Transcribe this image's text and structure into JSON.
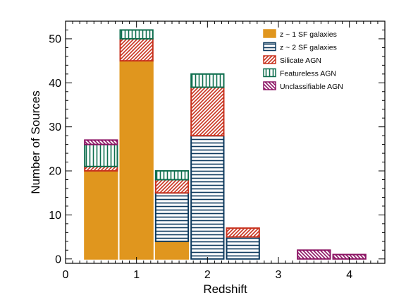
{
  "chart_data": {
    "type": "bar",
    "stacked": true,
    "xlabel": "Redshift",
    "ylabel": "Number of Sources",
    "xlim": [
      0,
      4.5
    ],
    "ylim": [
      -1,
      54
    ],
    "x_ticks": [
      0,
      1,
      2,
      3,
      4
    ],
    "y_ticks": [
      0,
      10,
      20,
      30,
      40,
      50
    ],
    "bin_width": 0.5,
    "bin_centers": [
      0.5,
      1.0,
      1.5,
      2.0,
      2.5,
      3.0,
      3.5,
      4.0
    ],
    "legend_position": "top-right",
    "series": [
      {
        "name": "z ~ 1 SF galaxies",
        "pattern": "solid",
        "color": "#E0961E",
        "values": [
          20,
          45,
          4,
          0,
          0,
          0,
          0,
          0
        ]
      },
      {
        "name": "z ~ 2 SF galaxies",
        "pattern": "horizontal-lines",
        "color": "#0E3A5E",
        "values": [
          0,
          0,
          11,
          28,
          5,
          0,
          0,
          0
        ]
      },
      {
        "name": "Silicate AGN",
        "pattern": "diagonal-lines",
        "color": "#C8321E",
        "values": [
          1,
          5,
          3,
          11,
          2,
          0,
          0,
          0
        ]
      },
      {
        "name": "Featureless AGN",
        "pattern": "vertical-lines",
        "color": "#0E6E4E",
        "values": [
          5,
          2,
          2,
          3,
          0,
          0,
          0,
          0
        ]
      },
      {
        "name": "Unclassifiable AGN",
        "pattern": "diagonal-lines-reverse",
        "color": "#8C1464",
        "values": [
          1,
          0,
          0,
          0,
          0,
          0,
          2,
          1
        ]
      }
    ]
  }
}
